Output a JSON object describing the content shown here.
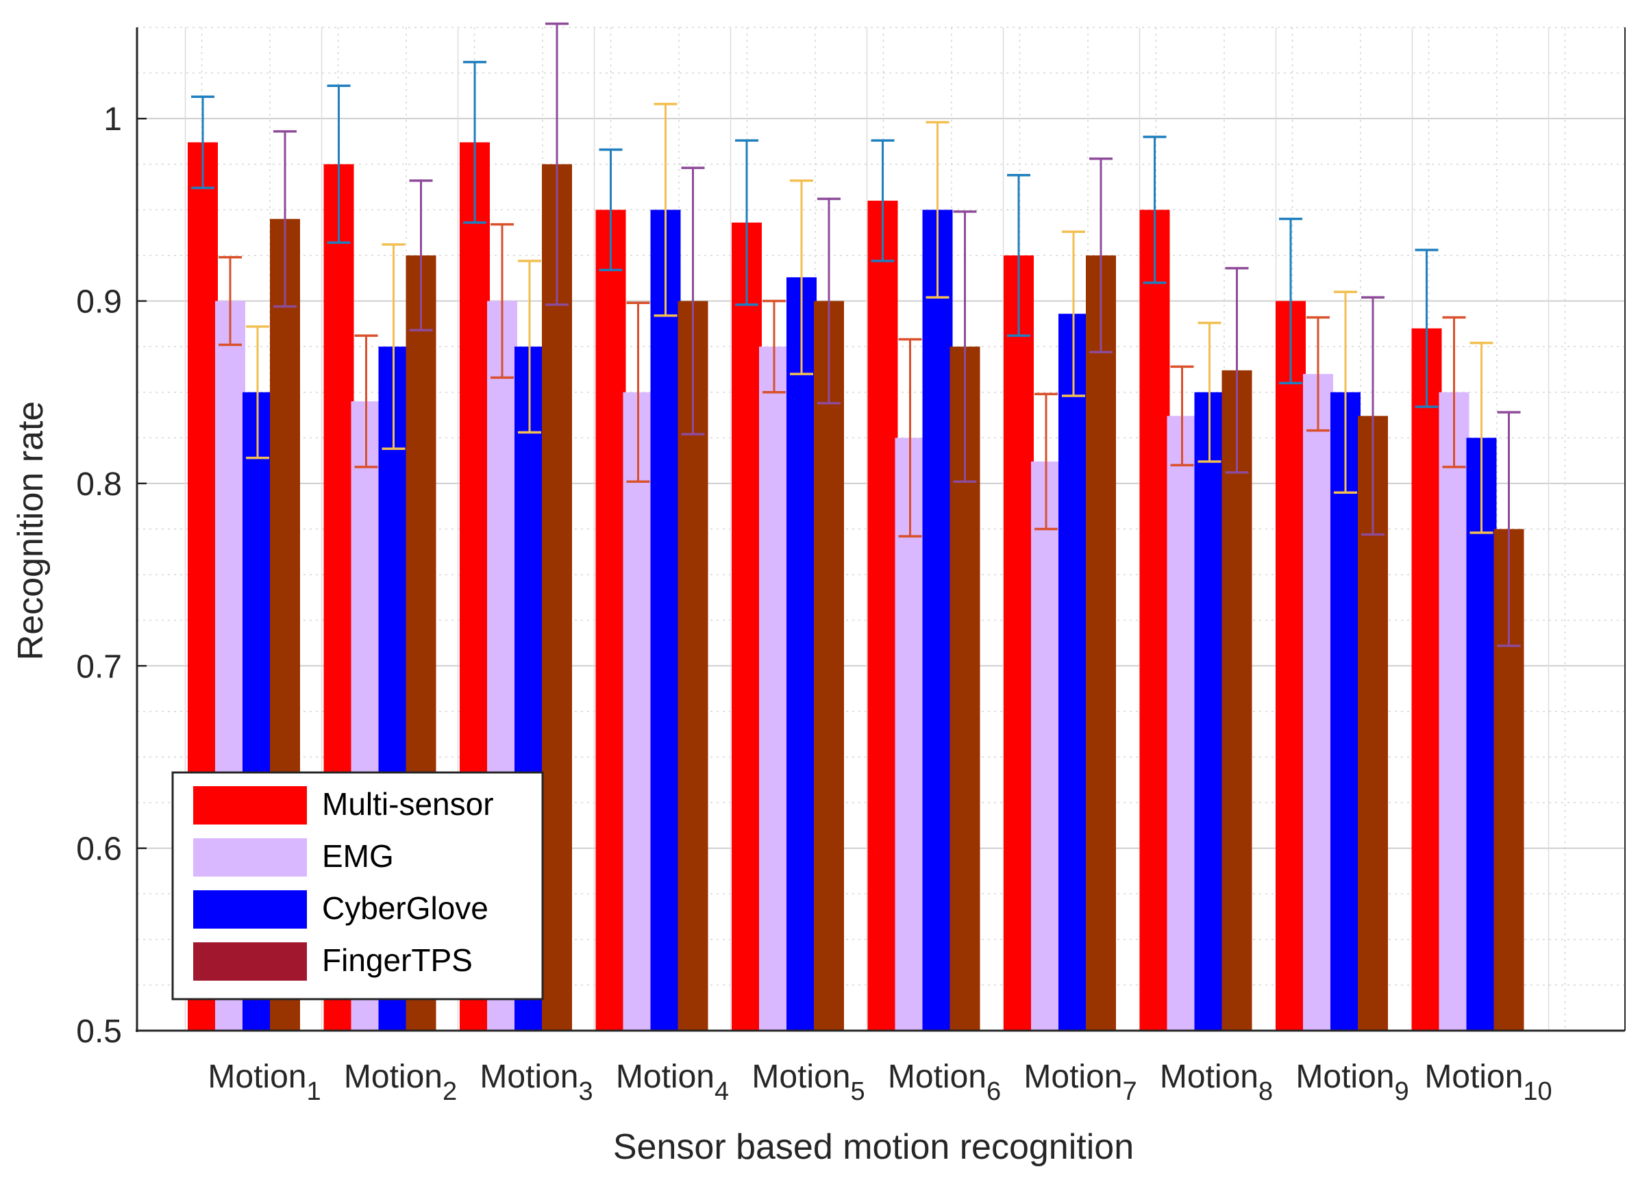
{
  "chart_data": {
    "type": "bar",
    "title": "",
    "xlabel": "Sensor based motion recognition",
    "ylabel": "Recognition rate",
    "ylim": [
      0.5,
      1.05
    ],
    "yticks": [
      0.5,
      0.6,
      0.7,
      0.8,
      0.9,
      1
    ],
    "ytick_labels": [
      "0.5",
      "0.6",
      "0.7",
      "0.8",
      "0.9",
      "1"
    ],
    "grid": true,
    "legend_position": "bottom-left",
    "categories": [
      {
        "base": "Motion",
        "sub": "1"
      },
      {
        "base": "Motion",
        "sub": "2"
      },
      {
        "base": "Motion",
        "sub": "3"
      },
      {
        "base": "Motion",
        "sub": "4"
      },
      {
        "base": "Motion",
        "sub": "5"
      },
      {
        "base": "Motion",
        "sub": "6"
      },
      {
        "base": "Motion",
        "sub": "7"
      },
      {
        "base": "Motion",
        "sub": "8"
      },
      {
        "base": "Motion",
        "sub": "9"
      },
      {
        "base": "Motion",
        "sub": "10"
      }
    ],
    "series": [
      {
        "name": "Multi-sensor",
        "color": "#ff0000",
        "error_color": "#1f7fbf",
        "legend_color": "#ff0000",
        "values": [
          0.987,
          0.975,
          0.987,
          0.95,
          0.943,
          0.955,
          0.925,
          0.95,
          0.9,
          0.885
        ],
        "errors": [
          0.025,
          0.043,
          0.044,
          0.033,
          0.045,
          0.033,
          0.044,
          0.04,
          0.045,
          0.043
        ]
      },
      {
        "name": "EMG",
        "color": "#d9b8ff",
        "error_color": "#d9502a",
        "legend_color": "#d9b8ff",
        "values": [
          0.9,
          0.845,
          0.9,
          0.85,
          0.875,
          0.825,
          0.812,
          0.837,
          0.86,
          0.85
        ],
        "errors": [
          0.024,
          0.036,
          0.042,
          0.049,
          0.025,
          0.054,
          0.037,
          0.027,
          0.031,
          0.041
        ]
      },
      {
        "name": "CyberGlove",
        "color": "#0000ff",
        "error_color": "#f2bf50",
        "legend_color": "#0000ff",
        "values": [
          0.85,
          0.875,
          0.875,
          0.95,
          0.913,
          0.95,
          0.893,
          0.85,
          0.85,
          0.825
        ],
        "errors": [
          0.036,
          0.056,
          0.047,
          0.058,
          0.053,
          0.048,
          0.045,
          0.038,
          0.055,
          0.052
        ]
      },
      {
        "name": "FingerTPS",
        "color": "#993300",
        "error_color": "#8e4b9a",
        "legend_color": "#a0172e",
        "values": [
          0.945,
          0.925,
          0.975,
          0.9,
          0.9,
          0.875,
          0.925,
          0.862,
          0.837,
          0.775
        ],
        "errors": [
          0.048,
          0.041,
          0.077,
          0.073,
          0.056,
          0.074,
          0.053,
          0.056,
          0.065,
          0.064
        ]
      }
    ]
  }
}
